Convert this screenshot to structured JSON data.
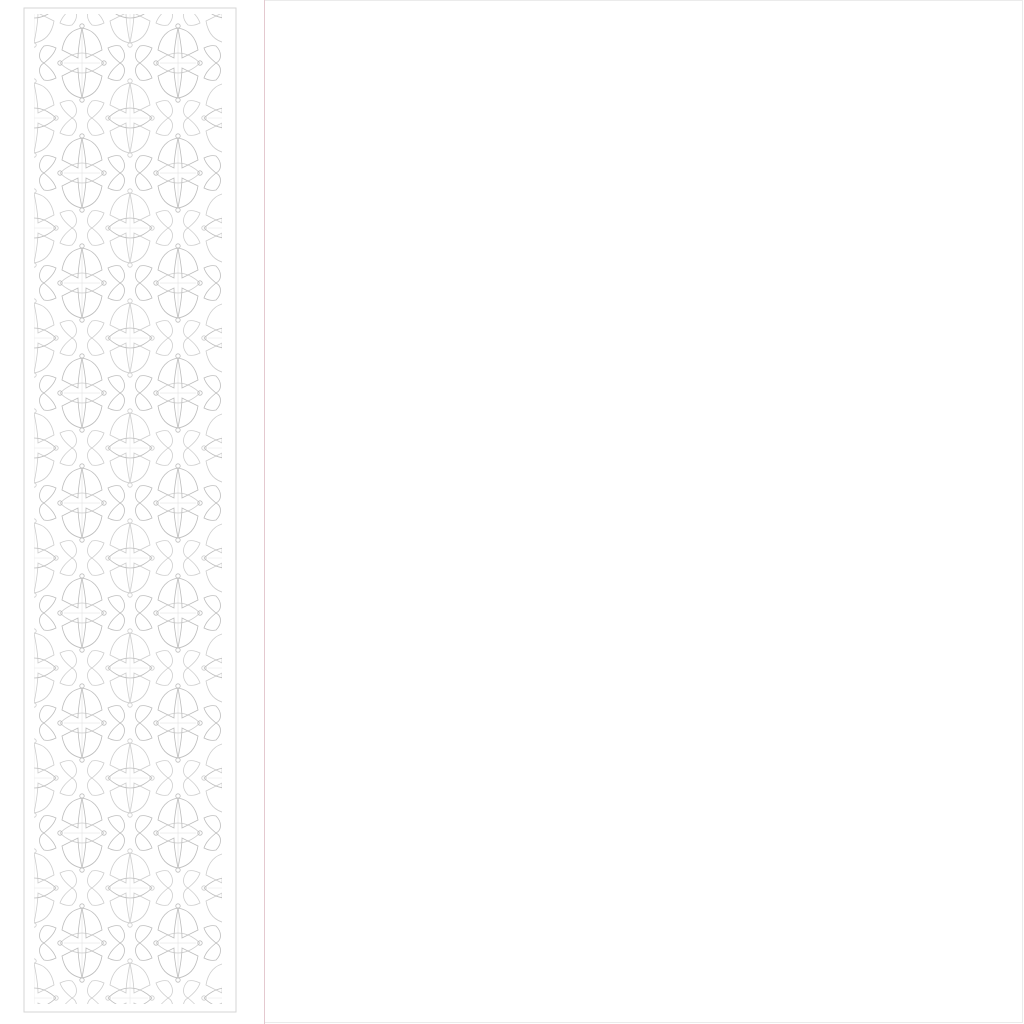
{
  "panel": {
    "motif": "lattice-tile-icon",
    "motif_count": 1,
    "stroke_color": "#bdbdbd",
    "frame_color": "#d6d6d6",
    "divider_color": "#e4c9cf",
    "background_color": "#ffffff"
  },
  "canvas": {
    "background_color": "#ffffff",
    "border_color": "#ebebeb"
  }
}
